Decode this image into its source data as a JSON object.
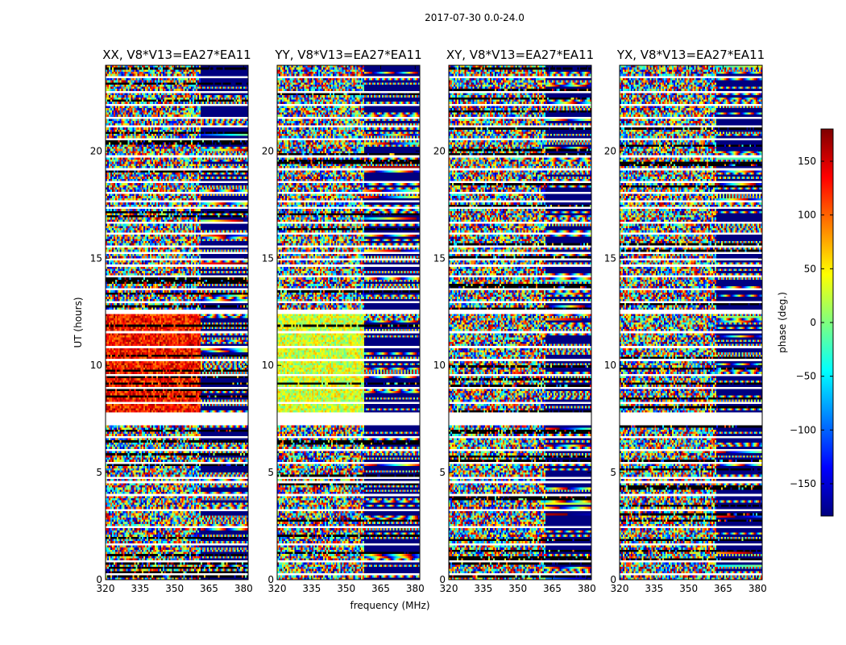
{
  "figure": {
    "title": "2017-07-30 0.0-24.0"
  },
  "colorbar": {
    "label": "phase (deg.)",
    "colormap": "jet",
    "range": [
      -180,
      180
    ],
    "ticks": [
      "150",
      "100",
      "50",
      "0",
      "−50",
      "−100",
      "−150"
    ],
    "tick_values": [
      150,
      100,
      50,
      0,
      -50,
      -100,
      -150
    ],
    "stops": [
      "#00007f",
      "#0000ff",
      "#007fff",
      "#00ffff",
      "#7fff7f",
      "#ffff00",
      "#ff7f00",
      "#ff0000",
      "#7f0000"
    ]
  },
  "chart_data": {
    "type": "heatmap",
    "xlabel": "frequency (MHz)",
    "ylabel": "UT (hours)",
    "xlim": [
      320,
      382
    ],
    "ylim": [
      0,
      24
    ],
    "x_ticks": [
      "320",
      "335",
      "350",
      "365",
      "380"
    ],
    "x_tick_values": [
      320,
      335,
      350,
      365,
      380
    ],
    "y_ticks": [
      "0",
      "5",
      "10",
      "15",
      "20"
    ],
    "y_tick_values": [
      0,
      5,
      10,
      15,
      20
    ],
    "value_label": "phase (deg.)",
    "flagged_rows_hours": [
      0.2,
      0.85,
      1.65,
      2.4,
      3.2,
      3.9,
      4.55,
      4.7,
      5.4,
      6.05,
      6.6,
      7.35,
      7.5,
      7.65,
      8.25,
      8.9,
      9.55,
      10.2,
      10.8,
      11.55,
      12.4,
      12.55,
      12.9,
      13.55,
      14.1,
      14.6,
      14.95,
      15.2,
      15.55,
      16.1,
      16.65,
      17.3,
      17.55,
      18.0,
      18.5,
      19.05,
      19.7,
      20.5,
      21.15,
      21.5,
      22.15,
      22.7,
      23.4
    ],
    "panels": [
      {
        "title": "XX, V8*V13=EA27*EA11",
        "product": "XX",
        "baseline": "V8*V13=EA27*EA11",
        "coherent_phase_deg": 130,
        "coherent_band_hours": [
          7.8,
          12.3
        ],
        "smooth_edge_mhz": 361
      },
      {
        "title": "YY, V8*V13=EA27*EA11",
        "product": "YY",
        "baseline": "V8*V13=EA27*EA11",
        "coherent_phase_deg": 30,
        "coherent_band_hours": [
          7.8,
          12.3
        ],
        "smooth_edge_mhz": 358
      },
      {
        "title": "XY, V8*V13=EA27*EA11",
        "product": "XY",
        "baseline": "V8*V13=EA27*EA11",
        "coherent_phase_deg": null,
        "coherent_band_hours": null,
        "smooth_edge_mhz": 362
      },
      {
        "title": "YX, V8*V13=EA27*EA11",
        "product": "YX",
        "baseline": "V8*V13=EA27*EA11",
        "coherent_phase_deg": null,
        "coherent_band_hours": null,
        "smooth_edge_mhz": 362
      }
    ]
  }
}
